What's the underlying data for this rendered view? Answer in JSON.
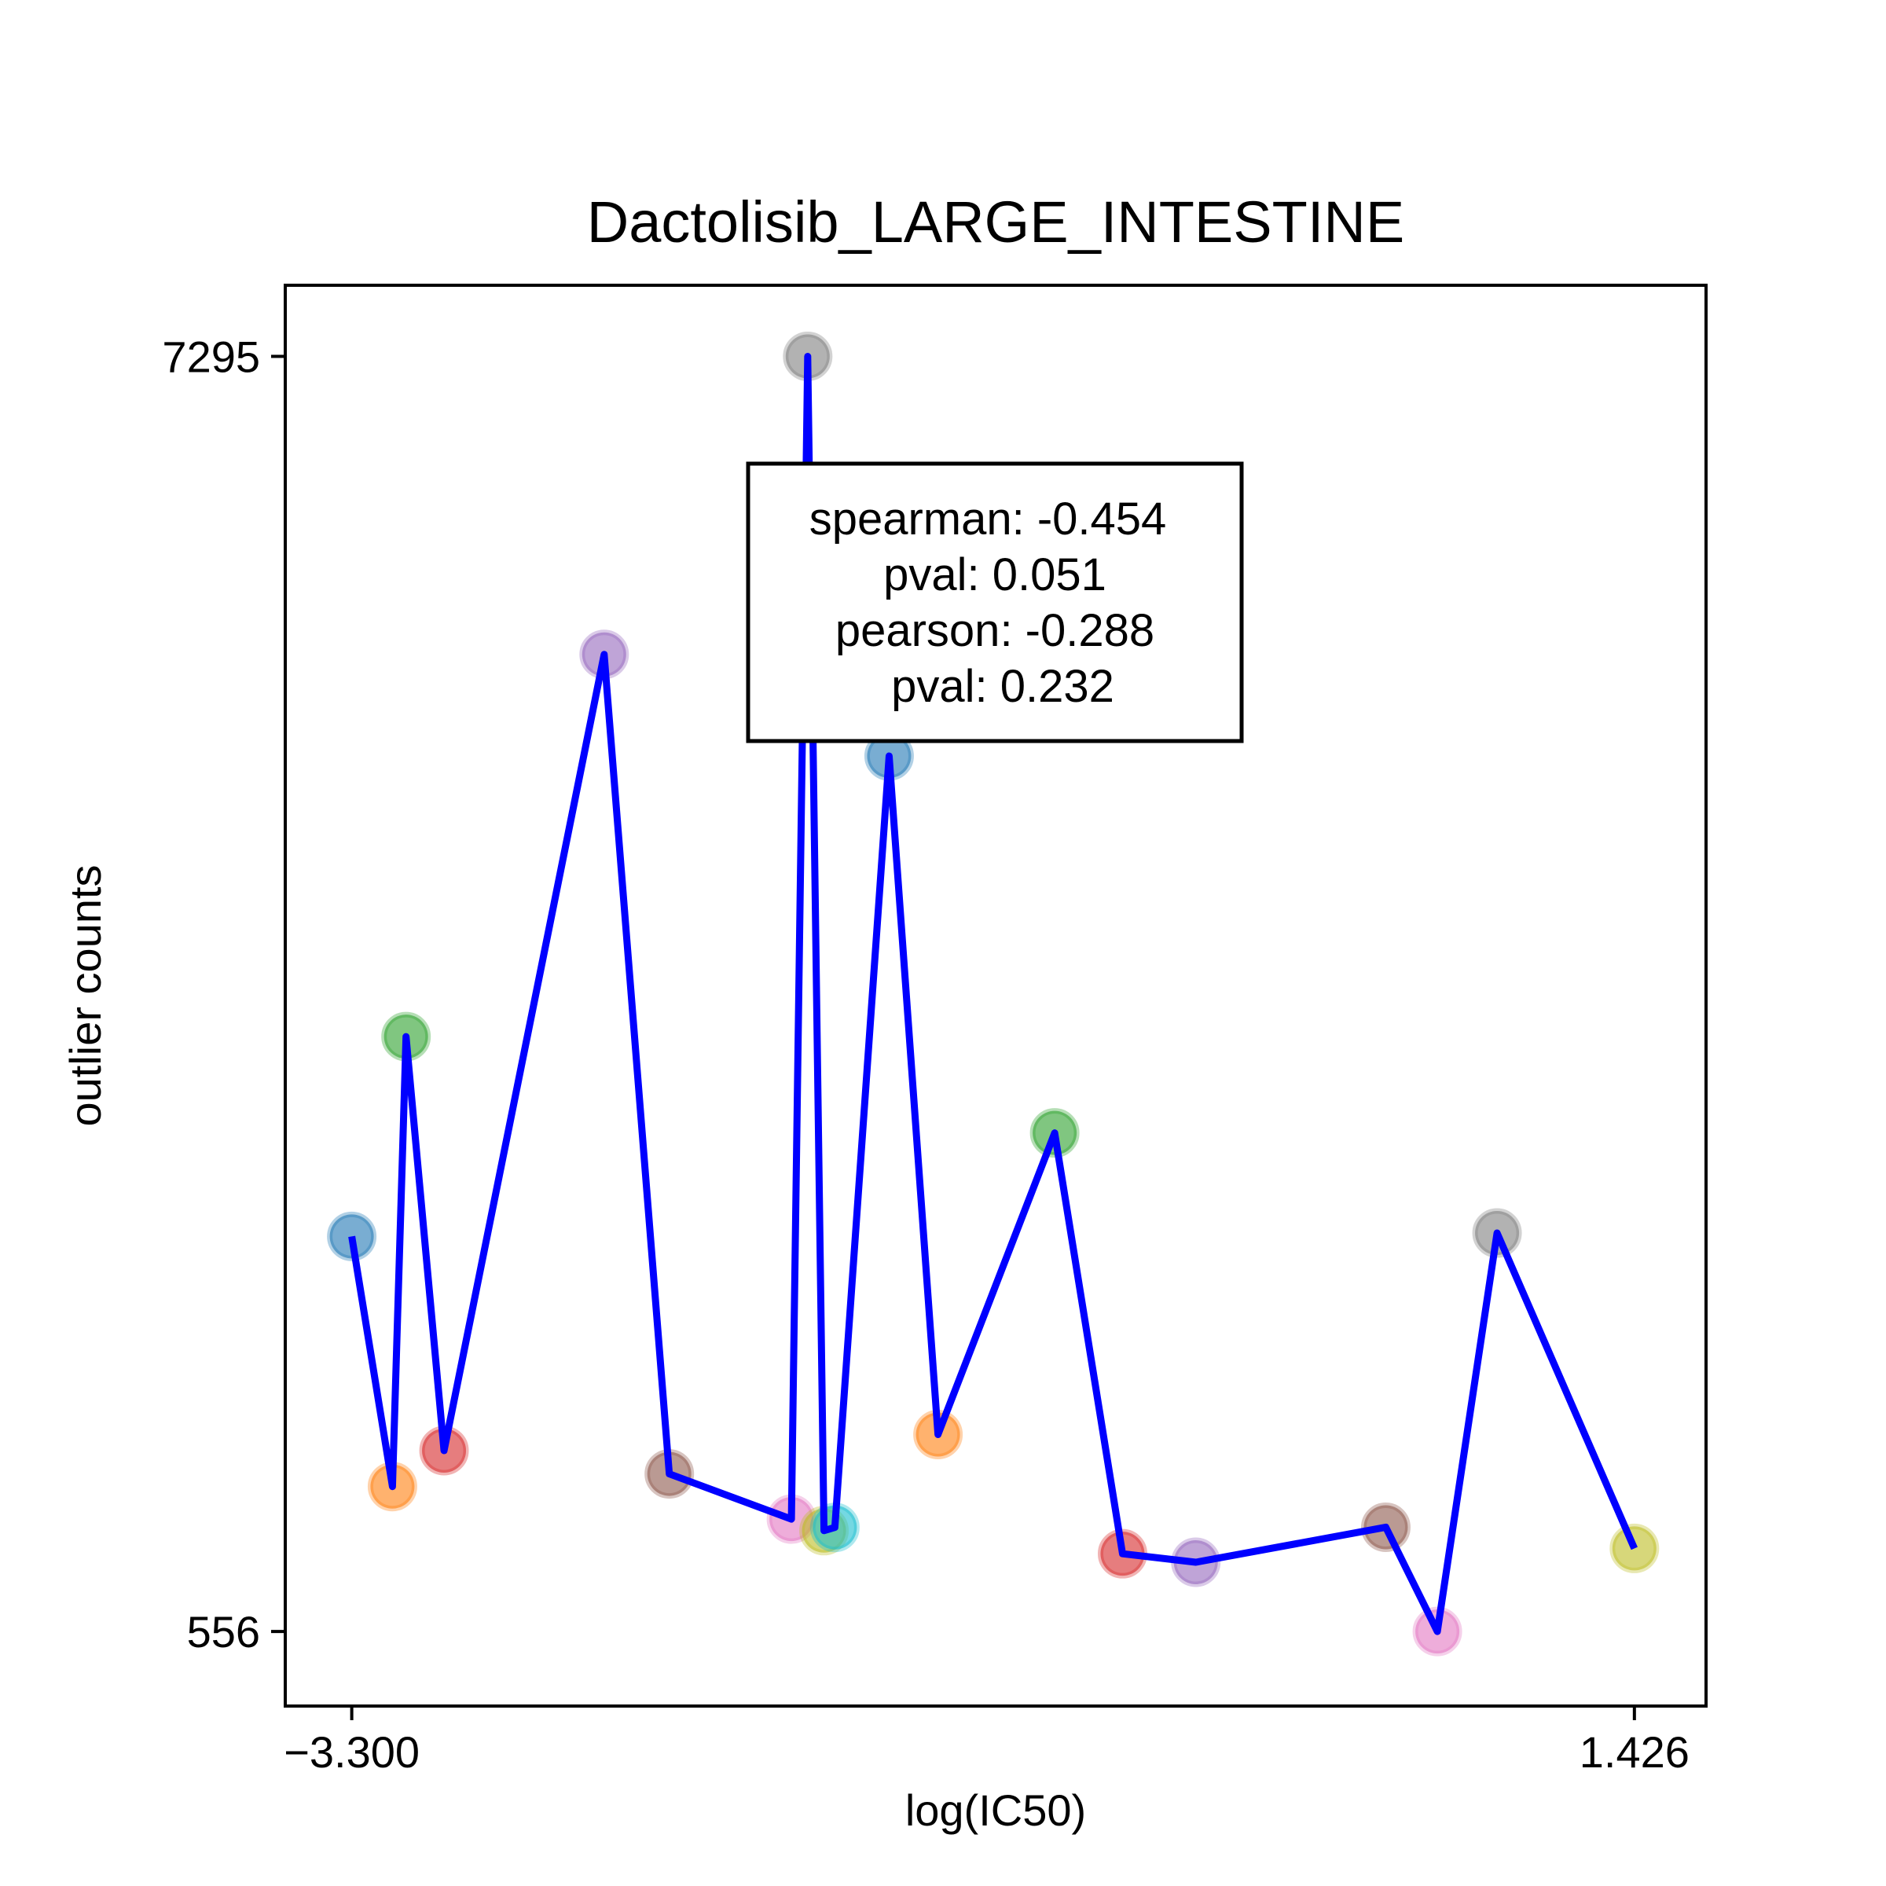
{
  "chart_data": {
    "type": "scatter",
    "title": "Dactolisib_LARGE_INTESTINE",
    "xlabel": "log(IC50)",
    "ylabel": "outlier counts",
    "xlim": [
      -3.545,
      1.69
    ],
    "ylim": [
      162,
      7671
    ],
    "xticks": [
      {
        "value": -3.3,
        "label": "−3.300"
      },
      {
        "value": 1.426,
        "label": "1.426"
      }
    ],
    "yticks": [
      {
        "value": 7295,
        "label": "7295"
      },
      {
        "value": 556,
        "label": "556"
      }
    ],
    "grid": false,
    "line_color": "#0000ff",
    "points": [
      {
        "x": -3.3,
        "y": 2644,
        "color": "#1f77b4"
      },
      {
        "x": -3.15,
        "y": 1322,
        "color": "#ff7f0e"
      },
      {
        "x": -3.1,
        "y": 3700,
        "color": "#2ca02c"
      },
      {
        "x": -2.96,
        "y": 1512,
        "color": "#d62728"
      },
      {
        "x": -2.37,
        "y": 5720,
        "color": "#9467bd"
      },
      {
        "x": -2.13,
        "y": 1389,
        "color": "#8c564b"
      },
      {
        "x": -1.68,
        "y": 1150,
        "color": "#e377c2"
      },
      {
        "x": -1.62,
        "y": 7295,
        "color": "#7f7f7f"
      },
      {
        "x": -1.56,
        "y": 1089,
        "color": "#bcbd22"
      },
      {
        "x": -1.52,
        "y": 1106,
        "color": "#17becf"
      },
      {
        "x": -1.32,
        "y": 5183,
        "color": "#1f77b4"
      },
      {
        "x": -1.14,
        "y": 1597,
        "color": "#ff7f0e"
      },
      {
        "x": -0.71,
        "y": 3191,
        "color": "#2ca02c"
      },
      {
        "x": -0.46,
        "y": 967,
        "color": "#d62728"
      },
      {
        "x": -0.19,
        "y": 922,
        "color": "#9467bd"
      },
      {
        "x": 0.51,
        "y": 1107,
        "color": "#8c564b"
      },
      {
        "x": 0.7,
        "y": 556,
        "color": "#e377c2"
      },
      {
        "x": 0.92,
        "y": 2662,
        "color": "#7f7f7f"
      },
      {
        "x": 1.426,
        "y": 995,
        "color": "#bcbd22"
      }
    ],
    "annotation": [
      "spearman: -0.454",
      "pval: 0.051",
      "pearson: -0.288",
      "pval: 0.232"
    ]
  }
}
